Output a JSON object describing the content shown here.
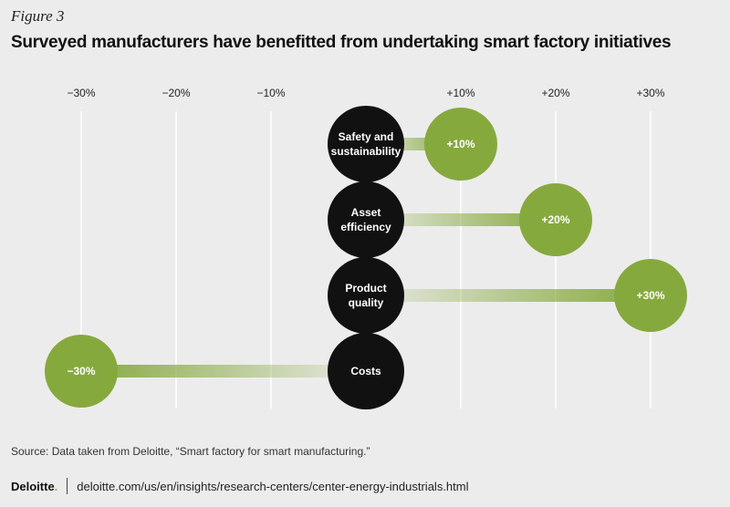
{
  "figure_label": "Figure 3",
  "title": "Surveyed manufacturers have benefitted from undertaking smart factory initiatives",
  "source": "Source: Data taken from Deloitte, “Smart factory for smart manufacturing.”",
  "footer": {
    "brand": "Deloitte",
    "brand_dot": ".",
    "url": "deloitte.com/us/en/insights/research-centers/center-energy-industrials.html"
  },
  "colors": {
    "background": "#ececec",
    "category_circle": "#111111",
    "value_circle": "#86a93e",
    "gridline": "#ffffff"
  },
  "chart_data": {
    "type": "bubble-bar",
    "xlim": [
      -30,
      30
    ],
    "x_ticks": [
      "−30%",
      "−20%",
      "−10%",
      "+10%",
      "+20%",
      "+30%"
    ],
    "x_tick_values": [
      -30,
      -20,
      -10,
      10,
      20,
      30
    ],
    "grid": true,
    "categories": [
      "Safety and\nsustainability",
      "Asset\nefficiency",
      "Product\nquality",
      "Costs"
    ],
    "values": [
      10,
      20,
      30,
      -30
    ],
    "value_labels": [
      "+10%",
      "+20%",
      "+30%",
      "−30%"
    ]
  }
}
